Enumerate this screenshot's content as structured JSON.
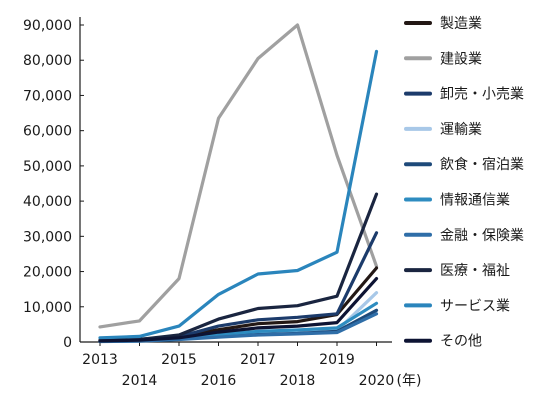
{
  "chart_data": {
    "type": "line",
    "title": "",
    "xlabel": "",
    "ylabel": "",
    "x_unit_label": "(年)",
    "categories": [
      "2013",
      "2014",
      "2015",
      "2016",
      "2017",
      "2018",
      "2019",
      "2020"
    ],
    "ylim": [
      0,
      90000
    ],
    "yticks": [
      0,
      10000,
      20000,
      30000,
      40000,
      50000,
      60000,
      70000,
      80000,
      90000
    ],
    "ytick_labels": [
      "0",
      "10,000",
      "20,000",
      "30,000",
      "40,000",
      "50,000",
      "60,000",
      "70,000",
      "80,000",
      "90,000"
    ],
    "grid": false,
    "legend_position": "right",
    "series": [
      {
        "name": "製造業",
        "color": "#231815",
        "values": [
          500,
          800,
          1500,
          3500,
          5200,
          5800,
          7800,
          21000
        ]
      },
      {
        "name": "建設業",
        "color": "#a0a0a0",
        "values": [
          4300,
          6000,
          18000,
          63500,
          80500,
          90000,
          53000,
          21500
        ]
      },
      {
        "name": "卸売・小売業",
        "color": "#1c3b6b",
        "values": [
          300,
          500,
          1500,
          4500,
          6300,
          7000,
          8000,
          31000
        ]
      },
      {
        "name": "運輸業",
        "color": "#a8c8e8",
        "values": [
          200,
          300,
          900,
          1800,
          2400,
          2700,
          3200,
          14000
        ]
      },
      {
        "name": "飲食・宿泊業",
        "color": "#1e4a7a",
        "values": [
          200,
          300,
          800,
          1600,
          2100,
          2400,
          3000,
          9000
        ]
      },
      {
        "name": "情報通信業",
        "color": "#2e8cc0",
        "values": [
          200,
          400,
          1000,
          2200,
          3000,
          3400,
          4000,
          11000
        ]
      },
      {
        "name": "金融・保険業",
        "color": "#2f6ea8",
        "values": [
          150,
          250,
          700,
          1400,
          2000,
          2300,
          2700,
          8000
        ]
      },
      {
        "name": "医療・福祉",
        "color": "#1a2540",
        "values": [
          300,
          700,
          2000,
          6500,
          9500,
          10300,
          13000,
          42000
        ]
      },
      {
        "name": "サービス業",
        "color": "#2a85bc",
        "values": [
          1200,
          1600,
          4500,
          13500,
          19300,
          20300,
          25500,
          82500
        ]
      },
      {
        "name": "その他",
        "color": "#0d1333",
        "values": [
          300,
          500,
          1200,
          2800,
          4000,
          4500,
          5500,
          18000
        ]
      }
    ]
  }
}
